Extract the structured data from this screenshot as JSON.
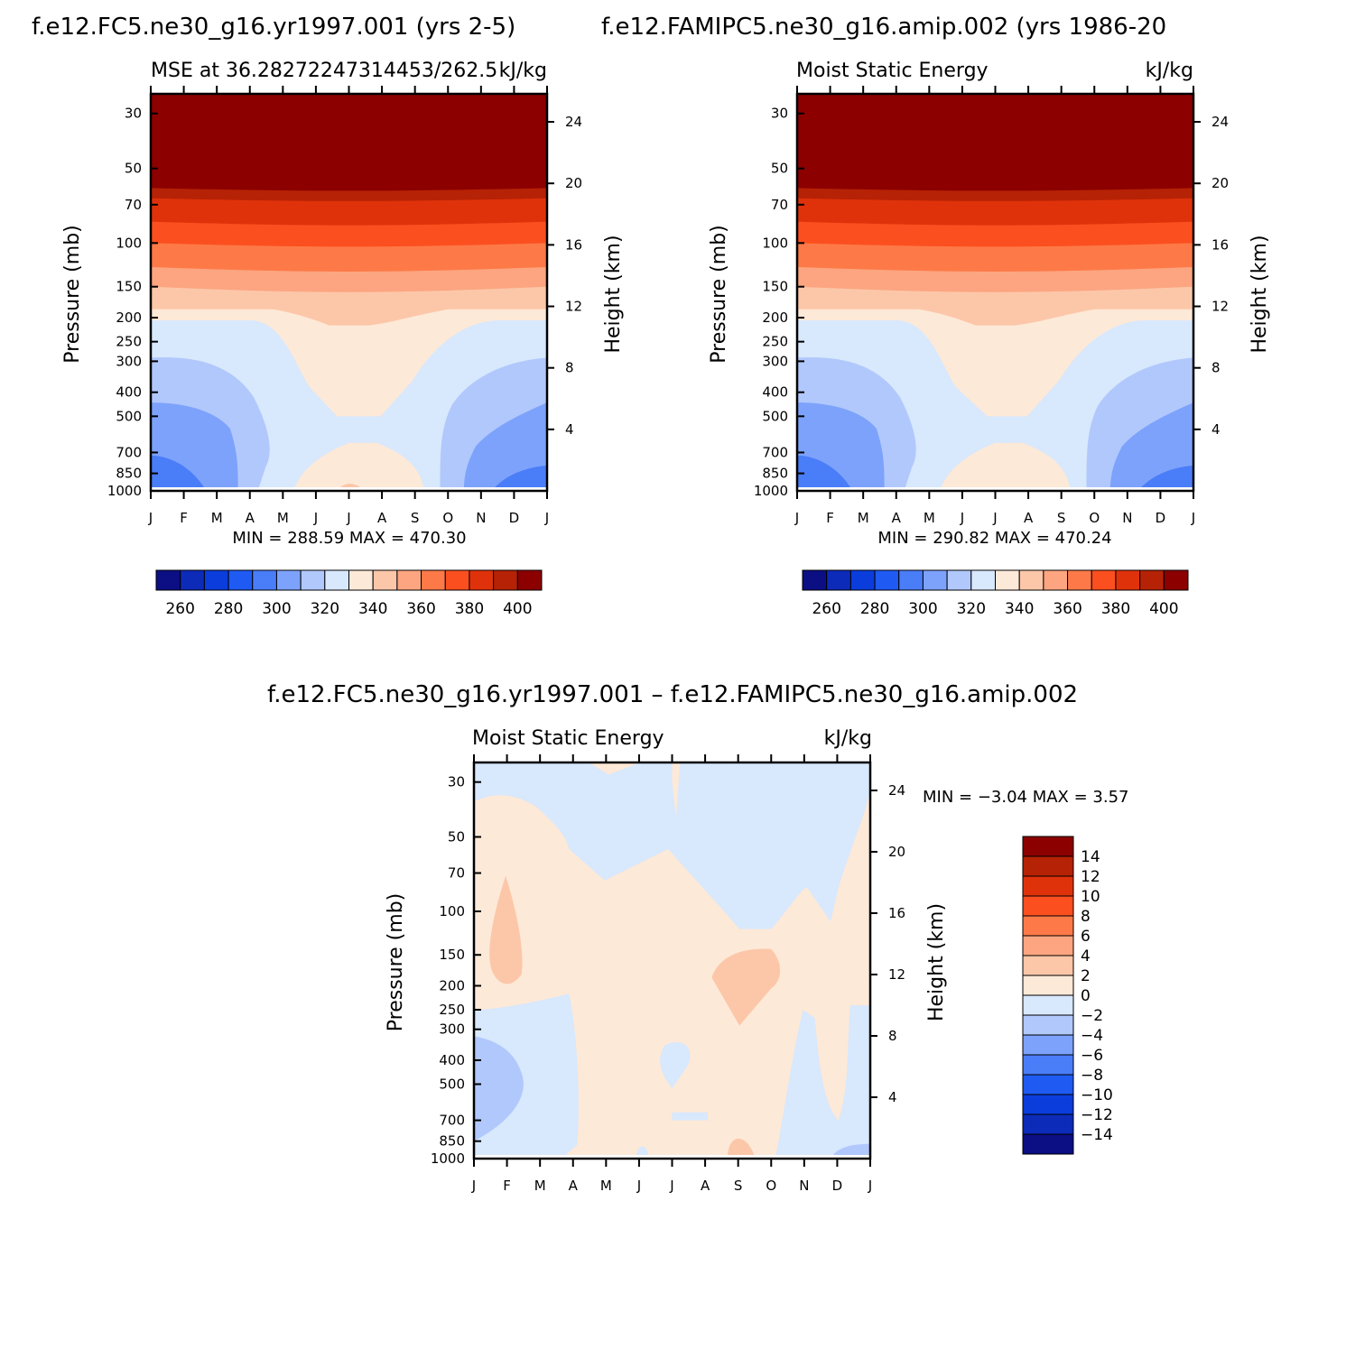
{
  "panels": {
    "left": {
      "case_title": "f.e12.FC5.ne30_g16.yr1997.001 (yrs 2-5)",
      "left_string": "MSE at 36.28272247314453/262.5",
      "right_string": "kJ/kg",
      "stats": "MIN =  288.59  MAX =  470.30"
    },
    "right": {
      "case_title": "f.e12.FAMIPC5.ne30_g16.amip.002 (yrs 1986-20",
      "left_string": "Moist Static Energy",
      "right_string": "kJ/kg",
      "stats": "MIN =  290.82  MAX =  470.24"
    },
    "diff": {
      "case_title": "f.e12.FC5.ne30_g16.yr1997.001 – f.e12.FAMIPC5.ne30_g16.amip.002",
      "left_string": "Moist Static Energy",
      "right_string": "kJ/kg",
      "stats": "MIN =   −3.04  MAX =     3.57"
    }
  },
  "chart_data": [
    {
      "type": "heatmap",
      "id": "left",
      "title": "f.e12.FC5.ne30_g16.yr1997.001 (yrs 2-5)",
      "subtitle": "MSE at 36.28272247314453/262.5",
      "units": "kJ/kg",
      "xlabel": "",
      "ylabel": "Pressure (mb)",
      "ylabel_right": "Height (km)",
      "x_ticks": [
        "J",
        "F",
        "M",
        "A",
        "M",
        "J",
        "J",
        "A",
        "S",
        "O",
        "N",
        "D",
        "J"
      ],
      "y_ticks": [
        30,
        50,
        70,
        100,
        150,
        200,
        250,
        300,
        400,
        500,
        700,
        850,
        1000
      ],
      "y_ticks_right": [
        4,
        8,
        12,
        16,
        20,
        24
      ],
      "y_scale": "log",
      "min": 288.59,
      "max": 470.3,
      "colorbar": {
        "labels": [
          "260",
          "280",
          "300",
          "320",
          "340",
          "360",
          "380",
          "400"
        ],
        "levels": [
          250,
          260,
          270,
          280,
          290,
          300,
          310,
          320,
          330,
          340,
          350,
          360,
          370,
          380,
          390,
          400
        ],
        "colors": [
          "#0c0e84",
          "#0d2bb9",
          "#0b3ddc",
          "#1f5af2",
          "#4a7df8",
          "#7da2fb",
          "#b1c8fc",
          "#d8e8fd",
          "#fde9d7",
          "#fcc7a9",
          "#fca580",
          "#fd7a48",
          "#fc4f1f",
          "#df320b",
          "#b62205",
          "#8c0000"
        ]
      },
      "profile_y_positions_px_note": "",
      "months": [
        "J",
        "F",
        "M",
        "A",
        "M",
        "J",
        "J",
        "A",
        "S",
        "O",
        "N",
        "D",
        "J"
      ]
    },
    {
      "type": "heatmap",
      "id": "right",
      "title": "f.e12.FAMIPC5.ne30_g16.amip.002 (yrs 1986-20",
      "subtitle": "Moist Static Energy",
      "units": "kJ/kg",
      "xlabel": "",
      "ylabel": "Pressure (mb)",
      "ylabel_right": "Height (km)",
      "x_ticks": [
        "J",
        "F",
        "M",
        "A",
        "M",
        "J",
        "J",
        "A",
        "S",
        "O",
        "N",
        "D",
        "J"
      ],
      "y_ticks": [
        30,
        50,
        70,
        100,
        150,
        200,
        250,
        300,
        400,
        500,
        700,
        850,
        1000
      ],
      "y_ticks_right": [
        4,
        8,
        12,
        16,
        20,
        24
      ],
      "y_scale": "log",
      "min": 290.82,
      "max": 470.24,
      "colorbar": {
        "labels": [
          "260",
          "280",
          "300",
          "320",
          "340",
          "360",
          "380",
          "400"
        ],
        "levels": [
          250,
          260,
          270,
          280,
          290,
          300,
          310,
          320,
          330,
          340,
          350,
          360,
          370,
          380,
          390,
          400
        ],
        "colors": [
          "#0c0e84",
          "#0d2bb9",
          "#0b3ddc",
          "#1f5af2",
          "#4a7df8",
          "#7da2fb",
          "#b1c8fc",
          "#d8e8fd",
          "#fde9d7",
          "#fcc7a9",
          "#fca580",
          "#fd7a48",
          "#fc4f1f",
          "#df320b",
          "#b62205",
          "#8c0000"
        ]
      },
      "months": [
        "J",
        "F",
        "M",
        "A",
        "M",
        "J",
        "J",
        "A",
        "S",
        "O",
        "N",
        "D",
        "J"
      ]
    },
    {
      "type": "heatmap",
      "id": "diff",
      "title": "f.e12.FC5.ne30_g16.yr1997.001 – f.e12.FAMIPC5.ne30_g16.amip.002",
      "subtitle": "Moist Static Energy",
      "units": "kJ/kg",
      "xlabel": "",
      "ylabel": "Pressure (mb)",
      "ylabel_right": "Height (km)",
      "x_ticks": [
        "J",
        "F",
        "M",
        "A",
        "M",
        "J",
        "J",
        "A",
        "S",
        "O",
        "N",
        "D",
        "J"
      ],
      "y_ticks": [
        30,
        50,
        70,
        100,
        150,
        200,
        250,
        300,
        400,
        500,
        700,
        850,
        1000
      ],
      "y_ticks_right": [
        4,
        8,
        12,
        16,
        20,
        24
      ],
      "y_scale": "log",
      "min": -3.04,
      "max": 3.57,
      "colorbar": {
        "labels": [
          "14",
          "12",
          "10",
          "8",
          "6",
          "4",
          "2",
          "0",
          "−2",
          "−4",
          "−6",
          "−8",
          "−10",
          "−12",
          "−14"
        ],
        "colors": [
          "#8c0000",
          "#b62205",
          "#df320b",
          "#fc4f1f",
          "#fd7a48",
          "#fca580",
          "#fcc7a9",
          "#fde9d7",
          "#d8e8fd",
          "#b1c8fc",
          "#7da2fb",
          "#4a7df8",
          "#1f5af2",
          "#0b3ddc",
          "#0d2bb9",
          "#0c0e84"
        ]
      },
      "months": [
        "J",
        "F",
        "M",
        "A",
        "M",
        "J",
        "J",
        "A",
        "S",
        "O",
        "N",
        "D",
        "J"
      ]
    }
  ]
}
